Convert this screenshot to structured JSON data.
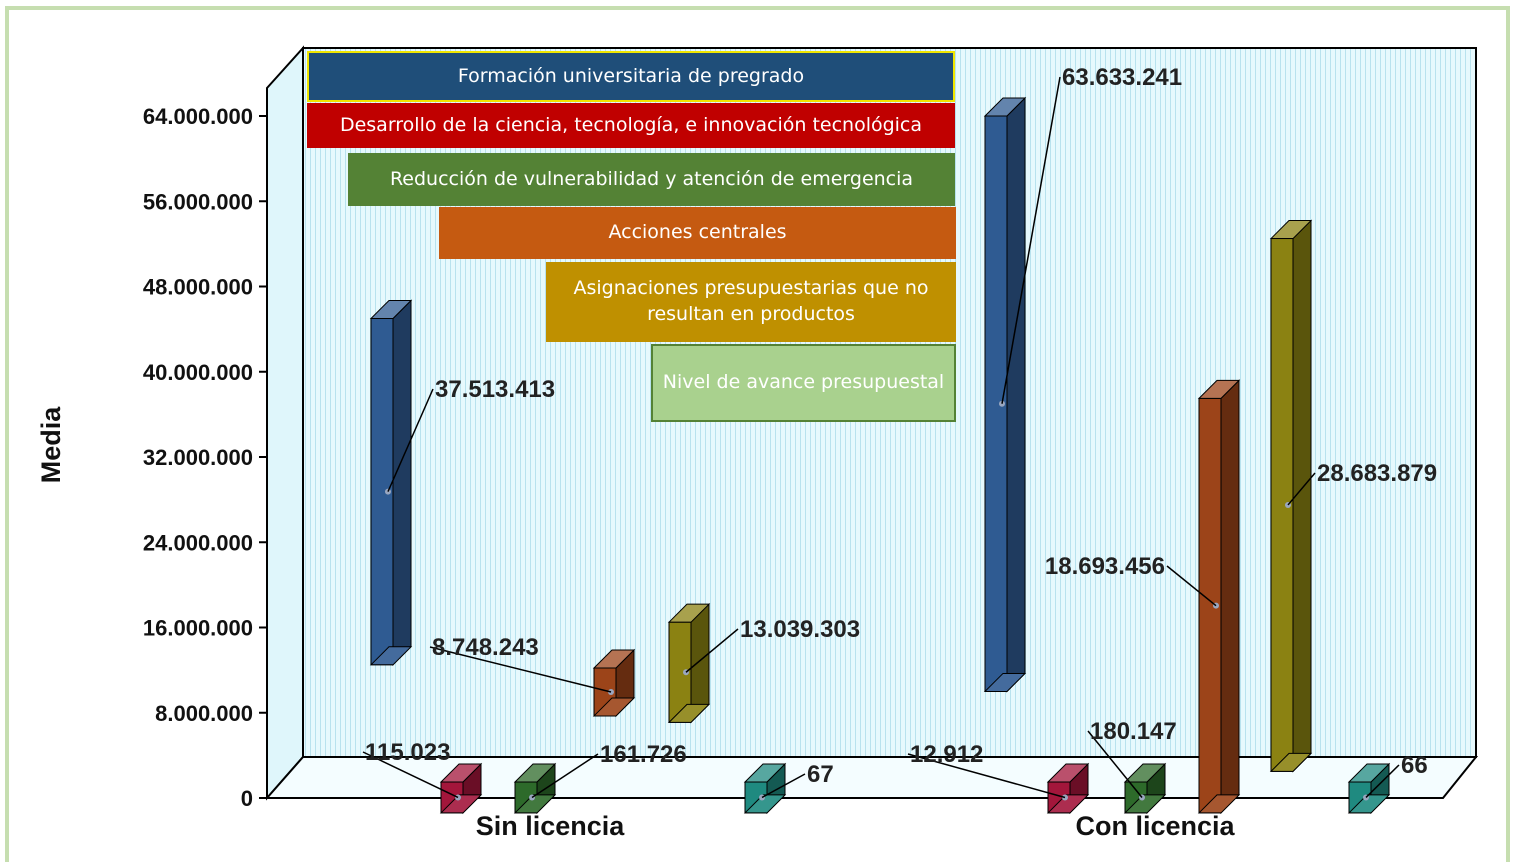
{
  "chart_data": {
    "type": "bar",
    "ylabel": "Media",
    "ylim": [
      0,
      64000000
    ],
    "yticks": [
      "0",
      "8.000.000",
      "16.000.000",
      "24.000.000",
      "32.000.000",
      "40.000.000",
      "48.000.000",
      "56.000.000",
      "64.000.000"
    ],
    "categories": [
      "Sin licencia",
      "Con licencia"
    ],
    "series": [
      {
        "name": "Formación universitaria de pregrado",
        "color": "#2f5b92",
        "values": [
          37513413,
          63633241
        ],
        "labels": [
          "37.513.413",
          "63.633.241"
        ]
      },
      {
        "name": "Desarrollo de la ciencia, tecnología, e innovación tecnológica",
        "color": "#a3163b",
        "values": [
          115023,
          12912
        ],
        "labels": [
          "115.023",
          "12.912"
        ]
      },
      {
        "name": "Reducción de vulnerabilidad y atención de emergencia",
        "color": "#2d6a2a",
        "values": [
          161726,
          180147
        ],
        "labels": [
          "161.726",
          "180.147"
        ]
      },
      {
        "name": "Acciones centrales",
        "color": "#9c4419",
        "values": [
          8748243,
          18693456
        ],
        "labels": [
          "8.748.243",
          "18.693.456"
        ]
      },
      {
        "name": "Asignaciones presupuestarias que no resultan en productos",
        "color": "#8b8212",
        "values": [
          13039303,
          28683879
        ],
        "labels": [
          "13.039.303",
          "28.683.879"
        ]
      },
      {
        "name": "Nivel de avance presupuestal",
        "color": "#1f8a80",
        "values": [
          67,
          66
        ],
        "labels": [
          "67",
          "66"
        ]
      }
    ],
    "legend": {
      "placement": "top-left",
      "items": [
        {
          "text": "Formación universitaria de pregrado",
          "color": "#1f4e79"
        },
        {
          "text": "Desarrollo de la ciencia, tecnología, e innovación tecnológica",
          "color": "#c00000"
        },
        {
          "text": "Reducción de vulnerabilidad y atención de emergencia",
          "color": "#548235"
        },
        {
          "text": "Acciones centrales",
          "color": "#c55a11"
        },
        {
          "text": "Asignaciones presupuestarias que no resultan en productos",
          "color": "#bf9000"
        },
        {
          "text": "Nivel de avance presupuestal",
          "color": "#a9d18e"
        }
      ]
    },
    "background": "#e3f8fd",
    "grid": false
  }
}
